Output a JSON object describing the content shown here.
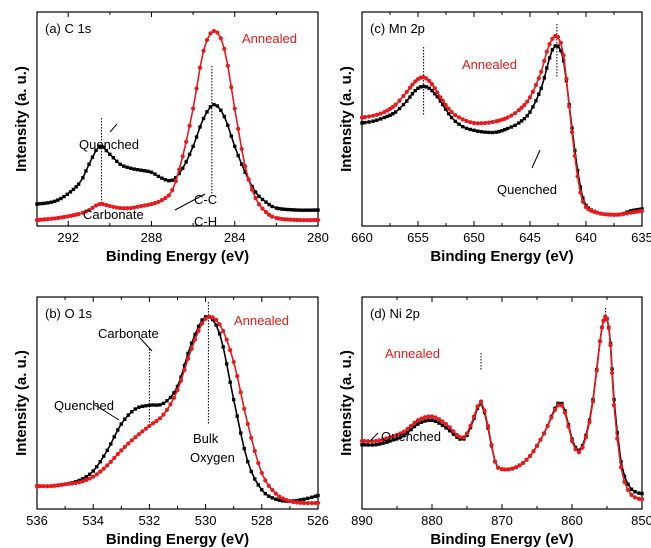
{
  "figure": {
    "panels": [
      {
        "id": "a",
        "title": "(a) C 1s",
        "xlabel": "Binding Energy (eV)",
        "ylabel": "Intensity (a. u.)"
      },
      {
        "id": "c",
        "title": "(c) Mn 2p",
        "xlabel": "Binding Energy (eV)",
        "ylabel": "Intensity (a. u.)"
      },
      {
        "id": "b",
        "title": "(b) O 1s",
        "xlabel": "Binding Energy (eV)",
        "ylabel": "Intensity (a. u.)"
      },
      {
        "id": "d",
        "title": "(d) Ni 2p",
        "xlabel": "Binding Energy (eV)",
        "ylabel": "Intensity (a. u.)"
      }
    ]
  },
  "colors": {
    "quenched": "#000000",
    "annealed": "#e8191c"
  },
  "chart_data": [
    {
      "type": "line",
      "title": "(a) C 1s",
      "xlabel": "Binding Energy (eV)",
      "ylabel": "Intensity (a. u.)",
      "xlim": [
        293.5,
        280
      ],
      "ylim": [
        0,
        1
      ],
      "xticks": [
        292,
        288,
        284,
        280
      ],
      "grid": false,
      "series": [
        {
          "name": "Quenched",
          "color": "#000000",
          "x": [
            293.5,
            292.5,
            291.5,
            291.0,
            290.5,
            290.0,
            289.5,
            289.0,
            288.5,
            288.0,
            287.5,
            287.0,
            286.5,
            286.0,
            285.5,
            285.0,
            284.5,
            284.0,
            283.5,
            283.0,
            282.5,
            282.0,
            281.0,
            280.0
          ],
          "y": [
            0.08,
            0.1,
            0.18,
            0.28,
            0.37,
            0.33,
            0.28,
            0.26,
            0.25,
            0.24,
            0.21,
            0.2,
            0.26,
            0.37,
            0.51,
            0.58,
            0.52,
            0.37,
            0.24,
            0.14,
            0.09,
            0.06,
            0.05,
            0.05
          ]
        },
        {
          "name": "Annealed",
          "color": "#e8191c",
          "x": [
            293.5,
            292.5,
            291.5,
            291.0,
            290.5,
            290.0,
            289.5,
            289.0,
            288.5,
            288.0,
            287.5,
            287.0,
            286.5,
            286.0,
            285.5,
            285.0,
            284.5,
            284.0,
            283.5,
            283.0,
            282.5,
            282.0,
            281.0,
            280.0
          ],
          "y": [
            0.0,
            0.01,
            0.03,
            0.05,
            0.08,
            0.07,
            0.06,
            0.06,
            0.07,
            0.08,
            0.1,
            0.15,
            0.32,
            0.56,
            0.85,
            0.95,
            0.86,
            0.56,
            0.27,
            0.11,
            0.04,
            0.01,
            0.0,
            0.0
          ]
        }
      ],
      "annotations": [
        "Quenched",
        "Annealed",
        "Carbonate",
        "C-C",
        "C-H"
      ],
      "reference_lines_x": [
        290.4,
        285.1
      ]
    },
    {
      "type": "line",
      "title": "(c) Mn 2p",
      "xlabel": "Binding Energy (eV)",
      "ylabel": "Intensity (a. u.)",
      "xlim": [
        660,
        635
      ],
      "ylim": [
        0,
        1
      ],
      "xticks": [
        660,
        655,
        650,
        645,
        640,
        635
      ],
      "grid": false,
      "series": [
        {
          "name": "Quenched",
          "color": "#000000",
          "x": [
            660,
            659,
            658,
            657,
            656,
            655.5,
            655,
            654.5,
            654,
            653.5,
            653,
            652,
            651,
            650,
            649,
            648,
            647,
            646,
            645,
            644,
            643.5,
            643,
            642.5,
            642,
            641.5,
            641,
            640.5,
            640,
            639,
            638,
            637,
            636,
            635
          ],
          "y": [
            0.53,
            0.54,
            0.56,
            0.59,
            0.65,
            0.69,
            0.72,
            0.73,
            0.72,
            0.69,
            0.65,
            0.56,
            0.51,
            0.49,
            0.48,
            0.48,
            0.5,
            0.53,
            0.59,
            0.72,
            0.83,
            0.93,
            0.95,
            0.87,
            0.63,
            0.38,
            0.18,
            0.08,
            0.04,
            0.03,
            0.03,
            0.05,
            0.06
          ]
        },
        {
          "name": "Annealed",
          "color": "#e8191c",
          "x": [
            660,
            659,
            658,
            657,
            656,
            655.5,
            655,
            654.5,
            654,
            653.5,
            653,
            652,
            651,
            650,
            649,
            648,
            647,
            646,
            645,
            644,
            643.5,
            643,
            642.5,
            642,
            641.5,
            641,
            640.5,
            640,
            639,
            638,
            637,
            636,
            635
          ],
          "y": [
            0.56,
            0.57,
            0.59,
            0.63,
            0.7,
            0.74,
            0.77,
            0.78,
            0.76,
            0.72,
            0.67,
            0.59,
            0.55,
            0.53,
            0.53,
            0.54,
            0.56,
            0.6,
            0.67,
            0.81,
            0.92,
            0.99,
            1.0,
            0.9,
            0.62,
            0.35,
            0.15,
            0.07,
            0.04,
            0.03,
            0.03,
            0.04,
            0.05
          ]
        }
      ],
      "annotations": [
        "Annealed",
        "Quenched"
      ],
      "reference_lines_x": [
        654.5,
        642.6
      ]
    },
    {
      "type": "line",
      "title": "(b) O 1s",
      "xlabel": "Binding Energy (eV)",
      "ylabel": "Intensity (a. u.)",
      "xlim": [
        536,
        526
      ],
      "ylim": [
        0,
        1
      ],
      "xticks": [
        536,
        534,
        532,
        530,
        528,
        526
      ],
      "grid": false,
      "series": [
        {
          "name": "Quenched",
          "color": "#000000",
          "x": [
            536,
            535.5,
            535,
            534.5,
            534,
            533.5,
            533,
            532.5,
            532,
            531.5,
            531,
            530.5,
            530,
            529.5,
            529,
            528.5,
            528,
            527.5,
            527,
            526.5,
            526
          ],
          "y": [
            0.09,
            0.09,
            0.1,
            0.12,
            0.17,
            0.28,
            0.42,
            0.5,
            0.52,
            0.53,
            0.62,
            0.85,
            0.99,
            0.9,
            0.55,
            0.22,
            0.07,
            0.02,
            0.01,
            0.02,
            0.04
          ]
        },
        {
          "name": "Annealed",
          "color": "#e8191c",
          "x": [
            536,
            535.5,
            535,
            534.5,
            534,
            533.5,
            533,
            532.5,
            532,
            531.5,
            531,
            530.5,
            530,
            529.5,
            529,
            528.5,
            528,
            527.5,
            527,
            526.5,
            526
          ],
          "y": [
            0.09,
            0.09,
            0.1,
            0.11,
            0.14,
            0.2,
            0.28,
            0.35,
            0.41,
            0.47,
            0.6,
            0.82,
            0.98,
            0.95,
            0.75,
            0.42,
            0.16,
            0.05,
            0.01,
            0.0,
            0.0
          ]
        }
      ],
      "annotations": [
        "Carbonate",
        "Quenched",
        "Annealed",
        "Bulk",
        "Oxygen"
      ],
      "reference_lines_x": [
        532.0,
        529.9
      ]
    },
    {
      "type": "line",
      "title": "(d) Ni 2p",
      "xlabel": "Binding Energy (eV)",
      "ylabel": "Intensity (a. u.)",
      "xlim": [
        890,
        850
      ],
      "ylim": [
        0,
        1
      ],
      "xticks": [
        890,
        880,
        870,
        860,
        850
      ],
      "grid": false,
      "series": [
        {
          "name": "Quenched",
          "color": "#000000",
          "x": [
            890,
            888,
            886,
            884,
            882,
            880,
            878,
            876,
            875,
            874,
            873,
            872,
            871,
            870,
            868,
            866,
            864,
            862,
            861,
            860,
            859,
            858,
            857,
            856,
            855.5,
            855,
            854.5,
            854,
            853,
            852,
            851,
            850
          ],
          "y": [
            0.31,
            0.31,
            0.33,
            0.36,
            0.42,
            0.44,
            0.4,
            0.34,
            0.36,
            0.45,
            0.53,
            0.4,
            0.22,
            0.18,
            0.19,
            0.25,
            0.37,
            0.53,
            0.49,
            0.34,
            0.28,
            0.36,
            0.55,
            0.86,
            0.97,
            0.98,
            0.85,
            0.55,
            0.22,
            0.1,
            0.06,
            0.05
          ]
        },
        {
          "name": "Annealed",
          "color": "#e8191c",
          "x": [
            890,
            888,
            886,
            884,
            882,
            880,
            878,
            876,
            875,
            874,
            873,
            872,
            871,
            870,
            868,
            866,
            864,
            862,
            861,
            860,
            859,
            858,
            857,
            856,
            855.5,
            855,
            854.5,
            854,
            853,
            852,
            851,
            850
          ],
          "y": [
            0.33,
            0.33,
            0.35,
            0.38,
            0.44,
            0.46,
            0.42,
            0.35,
            0.37,
            0.46,
            0.54,
            0.41,
            0.22,
            0.18,
            0.19,
            0.25,
            0.37,
            0.52,
            0.48,
            0.33,
            0.27,
            0.35,
            0.54,
            0.86,
            0.97,
            0.98,
            0.84,
            0.52,
            0.19,
            0.07,
            0.03,
            0.02
          ]
        }
      ],
      "annotations": [
        "Annealed",
        "Quenched"
      ],
      "reference_lines_x": [
        873.0,
        855.2
      ]
    }
  ]
}
